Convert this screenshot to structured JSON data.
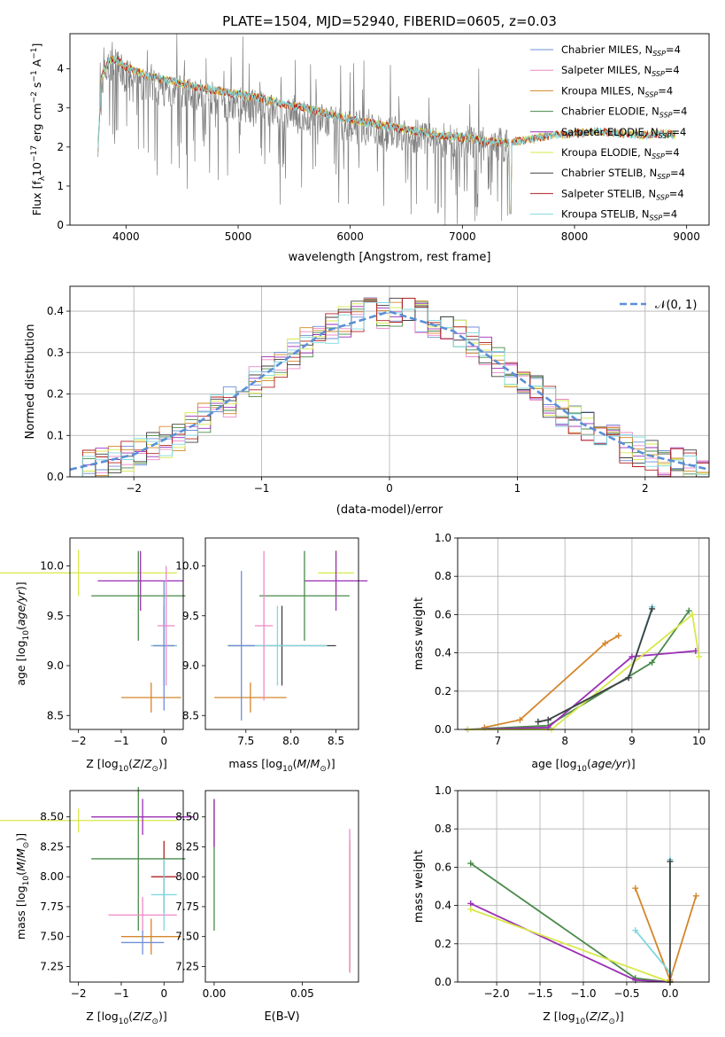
{
  "figure_title": "PLATE=1504, MJD=52940, FIBERID=0605, z=0.03",
  "colors": {
    "Chabrier MILES": "#6f8fd6",
    "Salpeter MILES": "#ee88c8",
    "Kroupa MILES": "#d4862a",
    "Chabrier ELODIE": "#4a8a4a",
    "Salpeter ELODIE": "#9b2fb5",
    "Kroupa ELODIE": "#d8e84a",
    "Chabrier STELIB": "#404040",
    "Salpeter STELIB": "#b02020",
    "Kroupa STELIB": "#7fd8e0",
    "data": "#808080",
    "gaussian": "#5b8fd6"
  },
  "legend_models": [
    {
      "name": "Chabrier MILES",
      "label": "Chabrier MILES, N",
      "sub": "SSP",
      "suffix": "=4"
    },
    {
      "name": "Salpeter MILES",
      "label": "Salpeter MILES, N",
      "sub": "SSP",
      "suffix": "=4"
    },
    {
      "name": "Kroupa MILES",
      "label": "Kroupa MILES, N",
      "sub": "SSP",
      "suffix": "=4"
    },
    {
      "name": "Chabrier ELODIE",
      "label": "Chabrier ELODIE, N",
      "sub": "SSP",
      "suffix": "=4"
    },
    {
      "name": "Salpeter ELODIE",
      "label": "Salpeter ELODIE, N",
      "sub": "SSP",
      "suffix": "=4"
    },
    {
      "name": "Kroupa ELODIE",
      "label": "Kroupa ELODIE, N",
      "sub": "SSP",
      "suffix": "=4"
    },
    {
      "name": "Chabrier STELIB",
      "label": "Chabrier STELIB, N",
      "sub": "SSP",
      "suffix": "=4"
    },
    {
      "name": "Salpeter STELIB",
      "label": "Salpeter STELIB, N",
      "sub": "SSP",
      "suffix": "=4"
    },
    {
      "name": "Kroupa STELIB",
      "label": "Kroupa STELIB, N",
      "sub": "SSP",
      "suffix": "=4"
    }
  ],
  "chart_data": [
    {
      "id": "spectrum",
      "type": "line",
      "xlabel": "wavelength [Angstrom, rest frame]",
      "ylabel": "Flux [f",
      "ylabel_parts": [
        "Flux [f",
        "λ",
        "10",
        "−17",
        " erg cm",
        "−2",
        " s",
        "−1",
        " A",
        "−1",
        "]"
      ],
      "xlim": [
        3500,
        9200
      ],
      "ylim": [
        0,
        4.9
      ],
      "xticks": [
        4000,
        5000,
        6000,
        7000,
        8000,
        9000
      ],
      "yticks": [
        0,
        1,
        2,
        3,
        4
      ],
      "series": [
        {
          "name": "data",
          "x": [
            3750,
            3800,
            3900,
            4000,
            4100,
            4200,
            4300,
            4500,
            4700,
            4900,
            5100,
            5300,
            5500,
            5700,
            5900,
            6100,
            6300,
            6500,
            6700,
            6900,
            7100,
            7300,
            7420
          ],
          "y": [
            2.2,
            3.9,
            4.1,
            3.8,
            3.7,
            3.6,
            3.5,
            3.4,
            3.3,
            3.15,
            3.05,
            2.95,
            2.8,
            2.7,
            2.55,
            2.5,
            2.4,
            2.3,
            2.2,
            2.15,
            2.1,
            2.1,
            2.0
          ]
        },
        {
          "name": "model",
          "x": [
            3750,
            3780,
            3850,
            3900,
            4000,
            4100,
            4200,
            4400,
            4600,
            4800,
            5000,
            5200,
            5400,
            5600,
            5800,
            6000,
            6200,
            6400,
            6600,
            6800,
            7000,
            7200,
            7400,
            7600,
            7800,
            8000,
            8200,
            8400,
            8600,
            8800,
            8900
          ],
          "y": [
            2.0,
            3.8,
            4.2,
            4.25,
            4.05,
            3.95,
            3.8,
            3.7,
            3.55,
            3.45,
            3.35,
            3.25,
            3.1,
            3.0,
            2.85,
            2.7,
            2.6,
            2.5,
            2.4,
            2.3,
            2.25,
            2.15,
            2.1,
            2.2,
            2.3,
            2.35,
            2.4,
            2.35,
            2.3,
            2.35,
            2.3
          ]
        }
      ]
    },
    {
      "id": "residuals",
      "type": "line",
      "xlabel": "(data-model)/error",
      "ylabel": "Normed distribution",
      "xlim": [
        -2.5,
        2.5
      ],
      "ylim": [
        0,
        0.46
      ],
      "xticks": [
        -2,
        -1,
        0,
        1,
        2
      ],
      "yticks": [
        0.0,
        0.1,
        0.2,
        0.3,
        0.4
      ],
      "legend": "𝒩(0, 1)",
      "series": [
        {
          "name": "N(0,1)",
          "x": [
            -2.5,
            -2.0,
            -1.5,
            -1.0,
            -0.5,
            0,
            0.5,
            1.0,
            1.5,
            2.0,
            2.5
          ],
          "y": [
            0.0175,
            0.054,
            0.1295,
            0.242,
            0.352,
            0.399,
            0.352,
            0.242,
            0.1295,
            0.054,
            0.0175
          ]
        }
      ]
    },
    {
      "id": "age-vs-Z",
      "type": "scatter",
      "xlabel": "Z [log",
      "ylabel": "age  [log",
      "xlim": [
        -2.2,
        0.45
      ],
      "ylim": [
        8.36,
        10.28
      ],
      "xticks": [
        -2,
        -1,
        0
      ],
      "yticks": [
        8.5,
        9.0,
        9.5,
        10.0
      ],
      "points": [
        {
          "model": "Kroupa ELODIE",
          "x": -2.0,
          "y": 9.93,
          "xerr": 2.3,
          "yerr": 0.23
        },
        {
          "model": "Salpeter ELODIE",
          "x": -0.55,
          "y": 9.85,
          "xerr": 1.0,
          "yerr": 0.3
        },
        {
          "model": "Chabrier ELODIE",
          "x": -0.6,
          "y": 9.7,
          "xerr": 1.1,
          "yerr": 0.45
        },
        {
          "model": "Chabrier STELIB",
          "x": 0.0,
          "y": 9.2,
          "xerr": 0.3,
          "yerr": 0.4
        },
        {
          "model": "Kroupa STELIB",
          "x": 0.0,
          "y": 9.2,
          "xerr": 0.3,
          "yerr": 0.4
        },
        {
          "model": "Kroupa MILES",
          "x": -0.3,
          "y": 8.68,
          "xerr": 0.7,
          "yerr": 0.15
        },
        {
          "model": "Chabrier MILES",
          "x": 0.0,
          "y": 9.2,
          "xerr": 0.25,
          "yerr": 0.65
        },
        {
          "model": "Salpeter MILES",
          "x": 0.05,
          "y": 9.4,
          "xerr": 0.2,
          "yerr": 0.6
        }
      ]
    },
    {
      "id": "age-vs-mass",
      "type": "scatter",
      "xlabel": "mass [log",
      "ylabel": "",
      "xlim": [
        7.05,
        8.75
      ],
      "ylim": [
        8.36,
        10.28
      ],
      "xticks": [
        7.5,
        8.0,
        8.5
      ],
      "yticks": [
        8.5,
        9.0,
        9.5,
        10.0
      ],
      "points": [
        {
          "model": "Kroupa ELODIE",
          "x": 8.5,
          "y": 9.93,
          "xerr": 0.2,
          "yerr": 0.23
        },
        {
          "model": "Salpeter ELODIE",
          "x": 8.5,
          "y": 9.85,
          "xerr": 0.35,
          "yerr": 0.3
        },
        {
          "model": "Chabrier ELODIE",
          "x": 8.15,
          "y": 9.7,
          "xerr": 0.5,
          "yerr": 0.45
        },
        {
          "model": "Chabrier STELIB",
          "x": 7.9,
          "y": 9.2,
          "xerr": 0.6,
          "yerr": 0.4
        },
        {
          "model": "Kroupa STELIB",
          "x": 7.85,
          "y": 9.2,
          "xerr": 0.55,
          "yerr": 0.4
        },
        {
          "model": "Kroupa MILES",
          "x": 7.55,
          "y": 8.68,
          "xerr": 0.4,
          "yerr": 0.15
        },
        {
          "model": "Chabrier MILES",
          "x": 7.45,
          "y": 9.2,
          "xerr": 0.15,
          "yerr": 0.75
        },
        {
          "model": "Salpeter MILES",
          "x": 7.7,
          "y": 9.4,
          "xerr": 0.1,
          "yerr": 0.75
        }
      ]
    },
    {
      "id": "weight-vs-age",
      "type": "line",
      "xlabel": "age  [log",
      "ylabel": "mass weight",
      "xlim": [
        6.4,
        10.15
      ],
      "ylim": [
        0,
        1.0
      ],
      "xticks": [
        7,
        8,
        9,
        10
      ],
      "yticks": [
        0.0,
        0.2,
        0.4,
        0.6,
        0.8,
        1.0
      ],
      "series": [
        {
          "name": "Kroupa MILES",
          "x": [
            6.8,
            7.33,
            8.6,
            8.8
          ],
          "y": [
            0.01,
            0.05,
            0.45,
            0.49
          ]
        },
        {
          "name": "Chabrier ELODIE",
          "x": [
            6.55,
            7.75,
            9.3,
            9.85
          ],
          "y": [
            0.0,
            0.02,
            0.35,
            0.62
          ]
        },
        {
          "name": "Salpeter ELODIE",
          "x": [
            6.55,
            7.75,
            9.0,
            9.95
          ],
          "y": [
            0.0,
            0.01,
            0.38,
            0.41
          ]
        },
        {
          "name": "Kroupa ELODIE",
          "x": [
            6.55,
            7.8,
            9.9,
            10.0
          ],
          "y": [
            0.0,
            0.0,
            0.6,
            0.38
          ]
        },
        {
          "name": "Kroupa STELIB",
          "x": [
            7.6,
            7.75,
            8.95,
            9.3
          ],
          "y": [
            0.04,
            0.05,
            0.27,
            0.64
          ]
        },
        {
          "name": "Chabrier STELIB",
          "x": [
            7.6,
            7.75,
            8.95,
            9.3
          ],
          "y": [
            0.04,
            0.05,
            0.27,
            0.63
          ]
        }
      ]
    },
    {
      "id": "mass-vs-Z",
      "type": "scatter",
      "xlabel": "Z [log",
      "ylabel": "mass [log",
      "xlim": [
        -2.2,
        0.45
      ],
      "ylim": [
        7.12,
        8.72
      ],
      "xticks": [
        -2,
        -1,
        0
      ],
      "yticks": [
        7.25,
        7.5,
        7.75,
        8.0,
        8.25,
        8.5
      ],
      "points": [
        {
          "model": "Kroupa ELODIE",
          "x": -2.0,
          "y": 8.47,
          "xerr": 2.3,
          "yerr": 0.1
        },
        {
          "model": "Salpeter ELODIE",
          "x": -0.5,
          "y": 8.5,
          "xerr": 1.2,
          "yerr": 0.15
        },
        {
          "model": "Chabrier ELODIE",
          "x": -0.6,
          "y": 8.15,
          "xerr": 1.1,
          "yerr": 0.6
        },
        {
          "model": "Salpeter STELIB",
          "x": 0.0,
          "y": 8.0,
          "xerr": 0.3,
          "yerr": 0.3
        },
        {
          "model": "Kroupa STELIB",
          "x": 0.0,
          "y": 7.85,
          "xerr": 0.3,
          "yerr": 0.3
        },
        {
          "model": "Salpeter MILES",
          "x": -0.5,
          "y": 7.68,
          "xerr": 0.8,
          "yerr": 0.15
        },
        {
          "model": "Kroupa MILES",
          "x": -0.3,
          "y": 7.5,
          "xerr": 0.7,
          "yerr": 0.15
        },
        {
          "model": "Chabrier MILES",
          "x": -0.5,
          "y": 7.45,
          "xerr": 0.5,
          "yerr": 0.1
        }
      ]
    },
    {
      "id": "mass-vs-EBV",
      "type": "scatter",
      "xlabel": "E(B-V)",
      "ylabel": "",
      "xlim": [
        -0.005,
        0.082
      ],
      "ylim": [
        7.12,
        8.72
      ],
      "xticks": [
        0.0,
        0.05
      ],
      "yticks": [
        7.25,
        7.5,
        7.75,
        8.0,
        8.25,
        8.5
      ],
      "points": [
        {
          "model": "Chabrier ELODIE",
          "x": 0.0,
          "y": 8.1,
          "xerr": 0,
          "yerr": 0.55
        },
        {
          "model": "Salpeter ELODIE",
          "x": 0.0,
          "y": 8.45,
          "xerr": 0,
          "yerr": 0.2
        },
        {
          "model": "Kroupa MILES",
          "x": 0.077,
          "y": 7.75,
          "xerr": 0,
          "yerr": 0.55
        },
        {
          "model": "Salpeter MILES",
          "x": 0.077,
          "y": 7.8,
          "xerr": 0,
          "yerr": 0.6
        }
      ]
    },
    {
      "id": "weight-vs-Z",
      "type": "line",
      "xlabel": "Z [log",
      "ylabel": "mass weight",
      "xlim": [
        -2.45,
        0.45
      ],
      "ylim": [
        0,
        1.0
      ],
      "xticks": [
        -2.0,
        -1.5,
        -1.0,
        -0.5,
        0.0
      ],
      "yticks": [
        0.0,
        0.2,
        0.4,
        0.6,
        0.8,
        1.0
      ],
      "series": [
        {
          "name": "Chabrier ELODIE",
          "x": [
            -2.3,
            -0.4,
            0.0
          ],
          "y": [
            0.62,
            0.02,
            0.0
          ]
        },
        {
          "name": "Salpeter ELODIE",
          "x": [
            -2.3,
            -0.4,
            0.0
          ],
          "y": [
            0.41,
            0.01,
            0.0
          ]
        },
        {
          "name": "Kroupa ELODIE",
          "x": [
            -2.3,
            0.0
          ],
          "y": [
            0.38,
            0.0
          ]
        },
        {
          "name": "Kroupa MILES",
          "x": [
            -0.4,
            0.0,
            0.3
          ],
          "y": [
            0.49,
            0.01,
            0.45
          ]
        },
        {
          "name": "Kroupa STELIB",
          "x": [
            -0.4,
            0.0,
            0.0
          ],
          "y": [
            0.27,
            0.05,
            0.64
          ]
        },
        {
          "name": "Chabrier STELIB",
          "x": [
            0.0,
            0.0
          ],
          "y": [
            0.0,
            0.63
          ]
        }
      ]
    }
  ]
}
